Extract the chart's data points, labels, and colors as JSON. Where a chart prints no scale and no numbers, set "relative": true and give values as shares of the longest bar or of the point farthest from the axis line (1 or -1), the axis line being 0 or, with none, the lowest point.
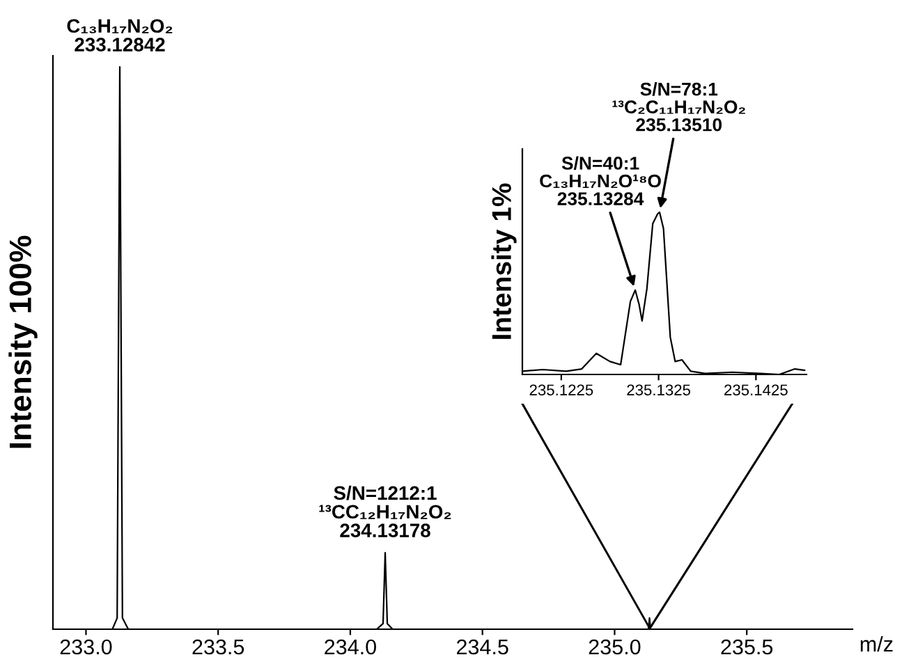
{
  "chart_data": [
    {
      "type": "line",
      "relative": true,
      "xlabel": "m/z",
      "ylabel": "Intensity 100%",
      "xlim": [
        232.875,
        235.9
      ],
      "xticks": [
        {
          "value": 233.0,
          "label": "233.0"
        },
        {
          "value": 233.5,
          "label": "233.5"
        },
        {
          "value": 234.0,
          "label": "234.0"
        },
        {
          "value": 234.5,
          "label": "234.5"
        },
        {
          "value": 235.0,
          "label": "235.0"
        },
        {
          "value": 235.5,
          "label": "235.5"
        }
      ],
      "tick_labels": "x",
      "grid": false,
      "legend": false,
      "marker": "none",
      "line_style": "solid",
      "series": [
        {
          "color": "#000000",
          "x": [
            232.9,
            233.1,
            233.118,
            233.128,
            233.138,
            233.16,
            234.1,
            234.124,
            234.132,
            234.14,
            234.16,
            235.1,
            235.128,
            235.132,
            235.136,
            235.16,
            235.9
          ],
          "values": [
            0,
            0,
            0.02,
            1,
            0.02,
            0,
            0,
            0.01,
            0.136,
            0.01,
            0,
            0,
            0,
            0.02,
            0,
            0,
            0
          ]
        }
      ],
      "annotations": [
        {
          "text": "C₁₃H₁₇N₂O₂\n233.12842",
          "x": 233.128,
          "y": 1
        },
        {
          "text": "S/N=1212:1\n¹³CC₁₂H₁₇N₂O₂\n234.13178",
          "x": 234.132,
          "y": 0.136
        }
      ]
    },
    {
      "type": "line",
      "relative": true,
      "ylabel": "Intensity 1%",
      "xlim": [
        235.1185,
        235.1477
      ],
      "xticks": [
        235.1225,
        235.1325,
        235.1425
      ],
      "tick_labels": "x",
      "grid": false,
      "legend": false,
      "marker": "none",
      "line_style": "solid",
      "series": [
        {
          "color": "#000000",
          "x": [
            235.1185,
            235.1206,
            235.123,
            235.1246,
            235.1261,
            235.1275,
            235.1286,
            235.1296,
            235.1301,
            235.1305,
            235.1308,
            235.1313,
            235.1319,
            235.1324,
            235.1326,
            235.133,
            235.1337,
            235.1342,
            235.1349,
            235.1358,
            235.1373,
            235.1401,
            235.143,
            235.1449,
            235.1465,
            235.1475
          ],
          "values": [
            0.02,
            0.03,
            0.02,
            0.034,
            0.13,
            0.08,
            0.06,
            0.45,
            0.52,
            0.43,
            0.33,
            0.53,
            0.93,
            0.99,
            1.0,
            0.9,
            0.23,
            0.08,
            0.09,
            0.02,
            0.006,
            0.014,
            0.006,
            0,
            0.034,
            0.026
          ]
        }
      ],
      "annotations": [
        {
          "text": "S/N=40:1\nC₁₃H₁₇N₂O¹⁸O\n235.13284",
          "x": 235.1301,
          "y": 0.52
        },
        {
          "text": "S/N=78:1\n¹³C₂C₁₁H₁₇N₂O₂\n235.13510",
          "x": 235.1326,
          "y": 1.0
        }
      ]
    }
  ]
}
